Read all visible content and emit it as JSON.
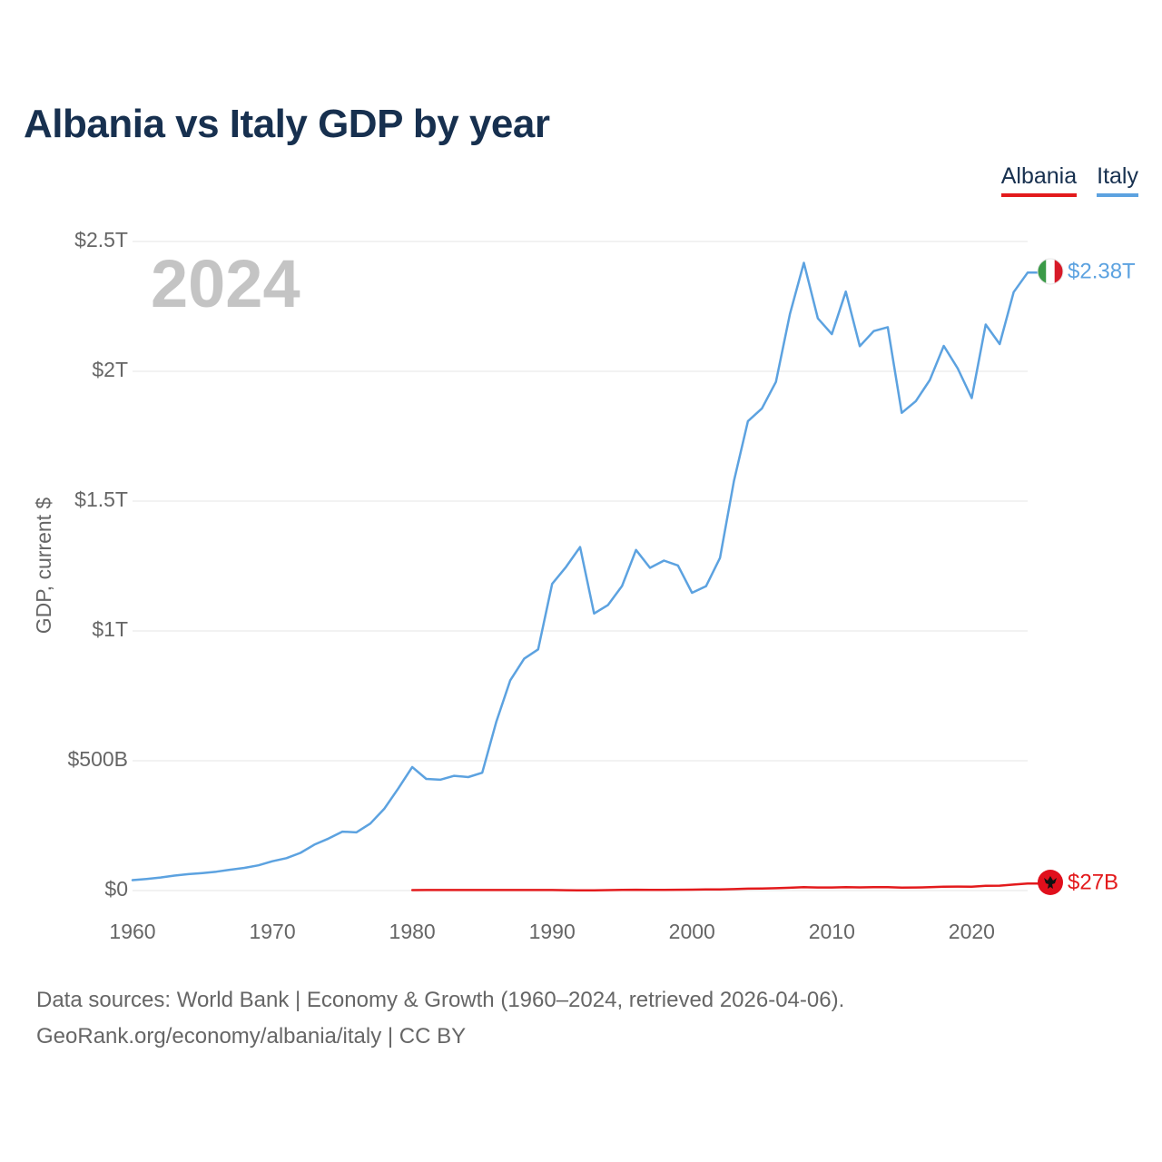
{
  "chart_data": {
    "type": "line",
    "title": "Albania vs Italy GDP by year",
    "ylabel": "GDP, current $",
    "xlabel": "",
    "xlim": [
      1960,
      2024
    ],
    "ylim": [
      0,
      2.5
    ],
    "yunit": "trillion USD",
    "grid": true,
    "legend_position": "top-right",
    "x_ticks": [
      1960,
      1970,
      1980,
      1990,
      2000,
      2010,
      2020
    ],
    "x_tick_labels": [
      "1960",
      "1970",
      "1980",
      "1990",
      "2000",
      "2010",
      "2020"
    ],
    "y_ticks": [
      0,
      0.5,
      1,
      1.5,
      2,
      2.5
    ],
    "y_tick_labels": [
      "$0",
      "$500B",
      "$1T",
      "$1.5T",
      "$2T",
      "$2.5T"
    ],
    "year_annotation": "2024",
    "series": [
      {
        "name": "Albania",
        "color": "#e31a1c",
        "end_label": "$27B",
        "x": [
          1980,
          1981,
          1982,
          1983,
          1984,
          1985,
          1986,
          1987,
          1988,
          1989,
          1990,
          1991,
          1992,
          1993,
          1994,
          1995,
          1996,
          1997,
          1998,
          1999,
          2000,
          2001,
          2002,
          2003,
          2004,
          2005,
          2006,
          2007,
          2008,
          2009,
          2010,
          2011,
          2012,
          2013,
          2014,
          2015,
          2016,
          2017,
          2018,
          2019,
          2020,
          2021,
          2022,
          2023,
          2024
        ],
        "values": [
          0.0019,
          0.002,
          0.0021,
          0.002,
          0.002,
          0.002,
          0.0021,
          0.0021,
          0.0021,
          0.0022,
          0.0021,
          0.0014,
          0.0007,
          0.0012,
          0.0019,
          0.0024,
          0.0033,
          0.0023,
          0.0025,
          0.0032,
          0.0035,
          0.0041,
          0.0044,
          0.0056,
          0.0073,
          0.0081,
          0.009,
          0.0107,
          0.0129,
          0.012,
          0.0119,
          0.0129,
          0.0123,
          0.0128,
          0.0132,
          0.0114,
          0.0119,
          0.013,
          0.0152,
          0.0154,
          0.0152,
          0.0181,
          0.019,
          0.023,
          0.027
        ]
      },
      {
        "name": "Italy",
        "color": "#5ca2e0",
        "end_label": "$2.38T",
        "x": [
          1960,
          1961,
          1962,
          1963,
          1964,
          1965,
          1966,
          1967,
          1968,
          1969,
          1970,
          1971,
          1972,
          1973,
          1974,
          1975,
          1976,
          1977,
          1978,
          1979,
          1980,
          1981,
          1982,
          1983,
          1984,
          1985,
          1986,
          1987,
          1988,
          1989,
          1990,
          1991,
          1992,
          1993,
          1994,
          1995,
          1996,
          1997,
          1998,
          1999,
          2000,
          2001,
          2002,
          2003,
          2004,
          2005,
          2006,
          2007,
          2008,
          2009,
          2010,
          2011,
          2012,
          2013,
          2014,
          2015,
          2016,
          2017,
          2018,
          2019,
          2020,
          2021,
          2022,
          2023,
          2024
        ],
        "values": [
          0.0402,
          0.0448,
          0.0504,
          0.0577,
          0.0632,
          0.0676,
          0.0729,
          0.0805,
          0.0873,
          0.0971,
          0.113,
          0.125,
          0.145,
          0.177,
          0.2,
          0.227,
          0.224,
          0.258,
          0.315,
          0.393,
          0.476,
          0.43,
          0.427,
          0.442,
          0.437,
          0.454,
          0.649,
          0.809,
          0.893,
          0.929,
          1.181,
          1.247,
          1.323,
          1.067,
          1.1,
          1.173,
          1.312,
          1.243,
          1.271,
          1.252,
          1.147,
          1.172,
          1.281,
          1.578,
          1.808,
          1.857,
          1.959,
          2.22,
          2.418,
          2.204,
          2.143,
          2.307,
          2.097,
          2.155,
          2.17,
          1.84,
          1.885,
          1.966,
          2.098,
          2.011,
          1.897,
          2.18,
          2.105,
          2.305,
          2.38
        ]
      }
    ]
  },
  "footer": {
    "line1": "Data sources: World Bank | Economy & Growth (1960–2024, retrieved 2026-04-06).",
    "line2": "GeoRank.org/economy/albania/italy | CC BY"
  }
}
